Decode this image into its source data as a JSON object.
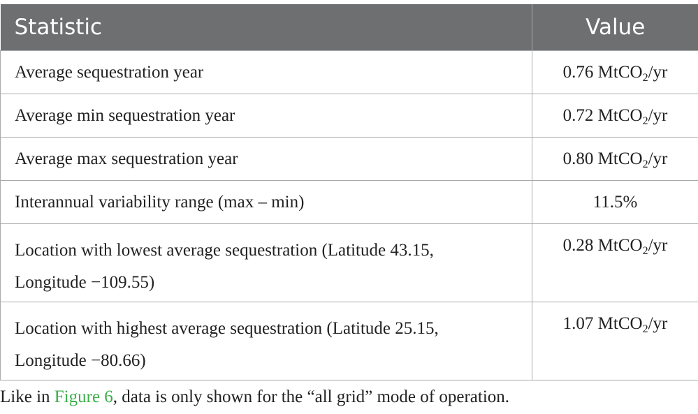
{
  "table": {
    "headers": {
      "statistic": "Statistic",
      "value": "Value"
    },
    "rows": [
      {
        "statistic": [
          "Average sequestration year"
        ],
        "value": "0.76",
        "unit_pre": "MtCO",
        "unit_sub": "2",
        "unit_post": "/yr"
      },
      {
        "statistic": [
          "Average min sequestration year"
        ],
        "value": "0.72",
        "unit_pre": "MtCO",
        "unit_sub": "2",
        "unit_post": "/yr"
      },
      {
        "statistic": [
          "Average max sequestration year"
        ],
        "value": "0.80",
        "unit_pre": "MtCO",
        "unit_sub": "2",
        "unit_post": "/yr"
      },
      {
        "statistic": [
          "Interannual variability range (max – min)"
        ],
        "value": "11.5%",
        "unit_pre": "",
        "unit_sub": "",
        "unit_post": ""
      },
      {
        "statistic": [
          "Location with lowest average sequestration (Latitude 43.15,",
          "Longitude −109.55)"
        ],
        "value": "0.28",
        "unit_pre": "MtCO",
        "unit_sub": "2",
        "unit_post": "/yr"
      },
      {
        "statistic": [
          "Location with highest average sequestration (Latitude 25.15,",
          "Longitude −80.66)"
        ],
        "value": "1.07",
        "unit_pre": "MtCO",
        "unit_sub": "2",
        "unit_post": "/yr"
      }
    ]
  },
  "caption": {
    "before": "Like in ",
    "link": "Figure 6",
    "after": ", data is only shown for the “all grid” mode of operation."
  },
  "colors": {
    "header_bg": "#6e6f71",
    "border": "#a9aaab",
    "link": "#3bae4a"
  }
}
